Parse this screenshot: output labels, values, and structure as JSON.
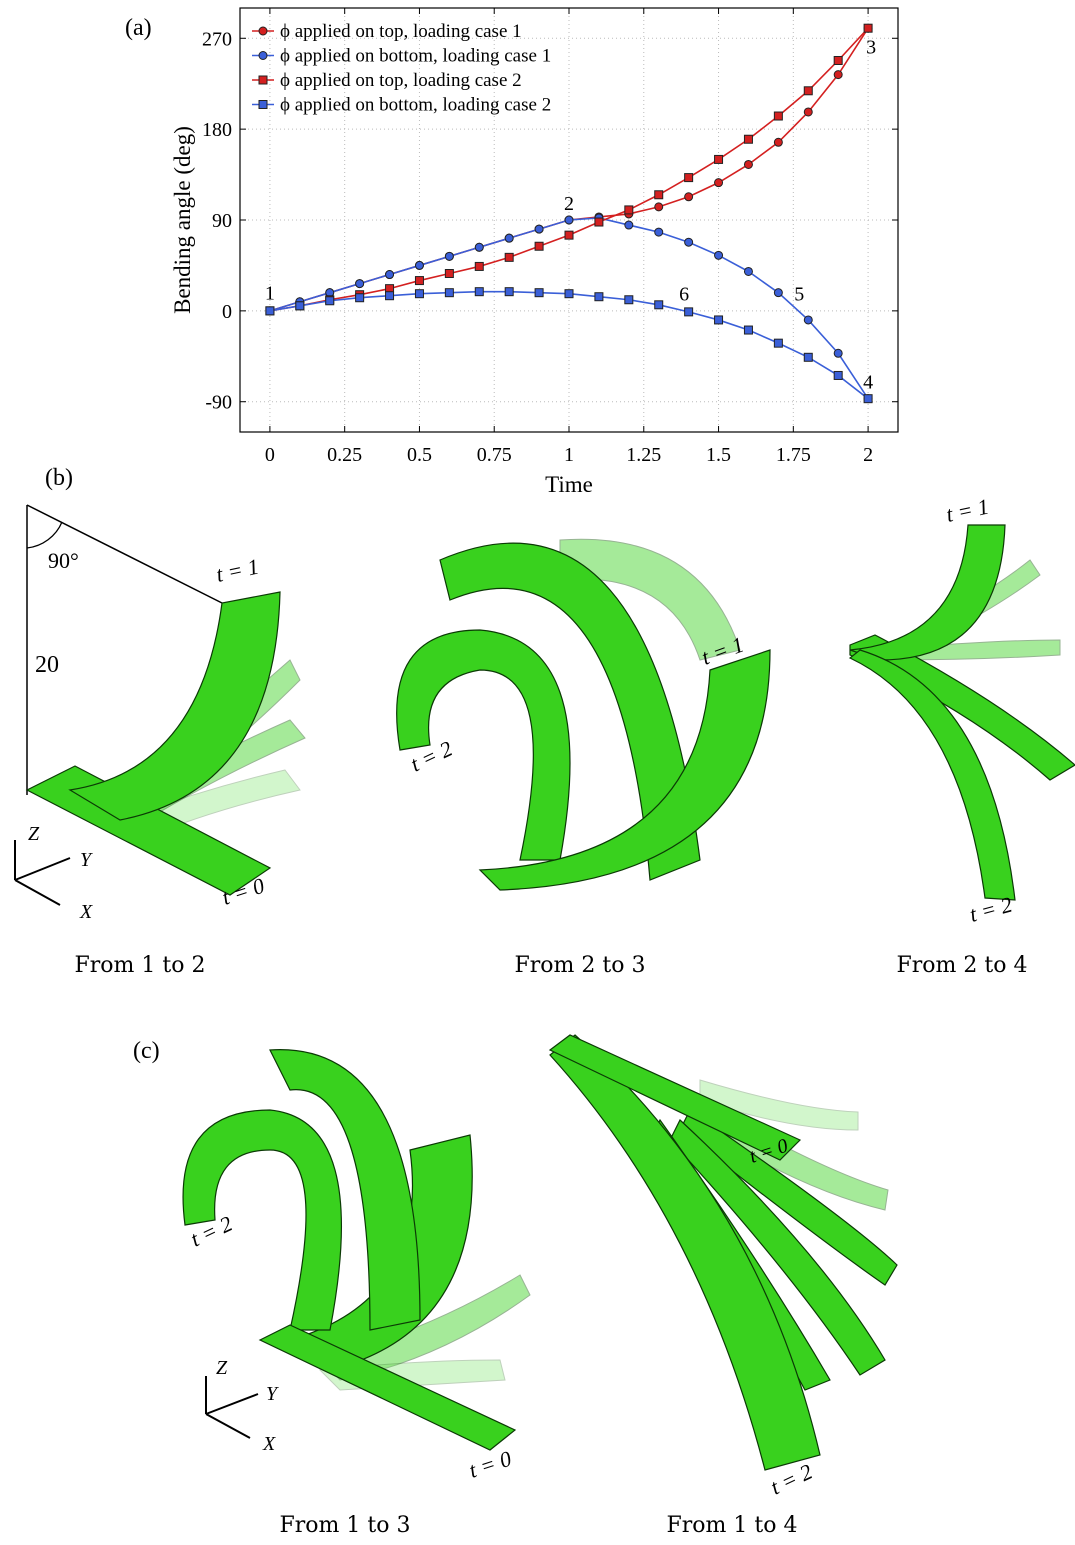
{
  "chart_data": {
    "type": "line",
    "xlabel": "Time",
    "ylabel": "Bending angle (deg)",
    "x": [
      0,
      0.1,
      0.2,
      0.3,
      0.4,
      0.5,
      0.6,
      0.7,
      0.8,
      0.9,
      1.0,
      1.1,
      1.2,
      1.3,
      1.4,
      1.5,
      1.6,
      1.7,
      1.8,
      1.9,
      2.0
    ],
    "xlim": [
      -0.1,
      2.1
    ],
    "xticks": [
      0,
      0.25,
      0.5,
      0.75,
      1,
      1.25,
      1.5,
      1.75,
      2
    ],
    "ylim": [
      -120,
      300
    ],
    "yticks": [
      -90,
      0,
      90,
      180,
      270
    ],
    "grid": true,
    "legend": "upper left",
    "series": [
      {
        "name": "ϕ applied on top, loading case 1",
        "color": "#d42020",
        "marker": "circle",
        "values": [
          0,
          9,
          18,
          27,
          36,
          45,
          54,
          63,
          72,
          81,
          90,
          93,
          96,
          103,
          113,
          127,
          145,
          167,
          197,
          234,
          280
        ]
      },
      {
        "name": "ϕ applied on bottom, loading case 1",
        "color": "#3a5fd8",
        "marker": "circle",
        "values": [
          0,
          9,
          18,
          27,
          36,
          45,
          54,
          63,
          72,
          81,
          90,
          92,
          85,
          78,
          68,
          55,
          39,
          18,
          -9,
          -42,
          -87
        ]
      },
      {
        "name": "ϕ applied on top, loading case 2",
        "color": "#d42020",
        "marker": "square",
        "values": [
          0,
          5,
          11,
          16,
          22,
          30,
          37,
          44,
          53,
          64,
          75,
          88,
          100,
          115,
          132,
          150,
          170,
          193,
          218,
          248,
          280
        ]
      },
      {
        "name": "ϕ applied on bottom, loading case 2",
        "color": "#3a5fd8",
        "marker": "square",
        "values": [
          0,
          5,
          10,
          13,
          15,
          17,
          18,
          19,
          19,
          18,
          17,
          14,
          11,
          6,
          -1,
          -9,
          -19,
          -32,
          -46,
          -64,
          -87
        ]
      }
    ],
    "annotations": [
      {
        "text": "1",
        "x": 0,
        "y": 18
      },
      {
        "text": "2",
        "x": 1,
        "y": 107
      },
      {
        "text": "3",
        "x": 2.01,
        "y": 262
      },
      {
        "text": "4",
        "x": 2,
        "y": -70
      },
      {
        "text": "5",
        "x": 1.77,
        "y": 17
      },
      {
        "text": "6",
        "x": 1.385,
        "y": 17
      }
    ]
  },
  "panel_labels": [
    "(a)",
    "(b)",
    "(c)"
  ],
  "angle_label": "90°",
  "length_label": "20",
  "axis_triad": [
    "Z",
    "Y",
    "X"
  ],
  "time_labels": [
    "t = 0",
    "t = 1",
    "t = 2"
  ],
  "captions": [
    "From 1 to 2",
    "From 2 to 3",
    "From 2 to 4",
    "From 1 to 3",
    "From 1 to 4"
  ]
}
